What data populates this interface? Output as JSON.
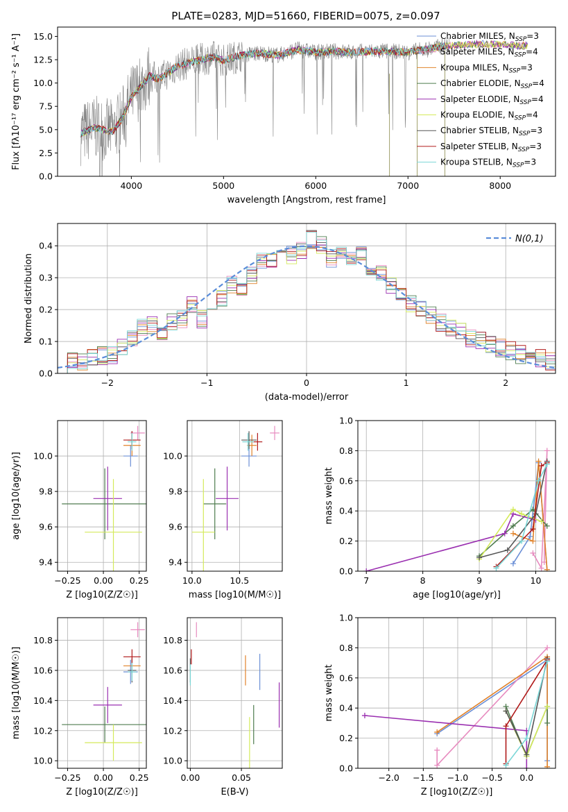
{
  "figure": {
    "title": "PLATE=0283, MJD=51660, FIBERID=0075, z=0.097"
  },
  "colors": {
    "Chabrier MILES": "#6b8fd6",
    "Salpeter MILES": "#e78bbf",
    "Kroupa MILES": "#e0822a",
    "Chabrier ELODIE": "#4d7b4d",
    "Salpeter ELODIE": "#9a2fb0",
    "Kroupa ELODIE": "#d4ea5a",
    "Chabrier STELIB": "#555555",
    "Salpeter STELIB": "#b01a1a",
    "Kroupa STELIB": "#7ad6d6",
    "normal_curve": "#5b8dd9",
    "data_spectrum": "#808080"
  },
  "chart_data": [
    {
      "id": "spectrum",
      "type": "line",
      "xlabel": "wavelength [Angstrom, rest frame]",
      "ylabel": "Flux [fλ10⁻¹⁷ erg cm⁻² s⁻¹ A⁻¹]",
      "xlim": [
        3200,
        8600
      ],
      "ylim": [
        0,
        16
      ],
      "xticks": [
        4000,
        5000,
        6000,
        7000,
        8000
      ],
      "yticks": [
        0.0,
        2.5,
        5.0,
        7.5,
        10.0,
        12.5,
        15.0
      ],
      "grid": false,
      "legend_position": "top-right",
      "legend": [
        "Chabrier MILES, N_SSP=3",
        "Salpeter MILES, N_SSP=4",
        "Kroupa MILES, N_SSP=3",
        "Chabrier ELODIE, N_SSP=4",
        "Salpeter ELODIE, N_SSP=4",
        "Kroupa ELODIE, N_SSP=4",
        "Chabrier STELIB, N_SSP=3",
        "Salpeter STELIB, N_SSP=3",
        "Kroupa STELIB, N_SSP=3"
      ],
      "continuum_x": [
        3450,
        3600,
        3800,
        3900,
        4000,
        4100,
        4200,
        4300,
        4500,
        4700,
        4900,
        5000,
        5200,
        5400,
        5600,
        5800,
        6000,
        6200,
        6400,
        6600,
        6800,
        7000,
        7200,
        7400,
        7800,
        8200
      ],
      "continuum_y": [
        4.6,
        5.2,
        4.8,
        6.2,
        8.5,
        9.6,
        10.8,
        10.4,
        11.8,
        12.4,
        12.8,
        12.4,
        13.0,
        13.2,
        13.0,
        13.6,
        13.3,
        13.4,
        13.3,
        13.4,
        13.4,
        13.3,
        13.6,
        14.0,
        14.2,
        14.0
      ]
    },
    {
      "id": "residuals",
      "type": "histogram",
      "xlabel": "(data-model)/error",
      "ylabel": "Normed distribution",
      "xlim": [
        -2.5,
        2.5
      ],
      "ylim": [
        0,
        0.47
      ],
      "xticks": [
        -2,
        -1,
        0,
        1,
        2
      ],
      "yticks": [
        0.0,
        0.1,
        0.2,
        0.3,
        0.4
      ],
      "grid": true,
      "legend_position": "top-right",
      "normal_label": "N(0,1)",
      "bin_centers": [
        -2.45,
        -2.35,
        -2.25,
        -2.15,
        -2.05,
        -1.95,
        -1.85,
        -1.75,
        -1.65,
        -1.55,
        -1.45,
        -1.35,
        -1.25,
        -1.15,
        -1.05,
        -0.95,
        -0.85,
        -0.75,
        -0.65,
        -0.55,
        -0.45,
        -0.35,
        -0.25,
        -0.15,
        -0.05,
        0.05,
        0.15,
        0.25,
        0.35,
        0.45,
        0.55,
        0.65,
        0.75,
        0.85,
        0.95,
        1.05,
        1.15,
        1.25,
        1.35,
        1.45,
        1.55,
        1.65,
        1.75,
        1.85,
        1.95,
        2.05,
        2.15,
        2.25,
        2.35,
        2.45
      ],
      "heights": [
        0.03,
        0.035,
        0.04,
        0.05,
        0.055,
        0.06,
        0.08,
        0.11,
        0.14,
        0.15,
        0.12,
        0.16,
        0.17,
        0.22,
        0.17,
        0.2,
        0.24,
        0.28,
        0.26,
        0.31,
        0.35,
        0.36,
        0.38,
        0.37,
        0.39,
        0.42,
        0.4,
        0.36,
        0.39,
        0.36,
        0.37,
        0.3,
        0.31,
        0.28,
        0.24,
        0.22,
        0.2,
        0.18,
        0.16,
        0.14,
        0.13,
        0.11,
        0.1,
        0.09,
        0.08,
        0.07,
        0.06,
        0.055,
        0.045,
        0.04
      ]
    },
    {
      "id": "age-vs-Z",
      "type": "errorbar",
      "xlabel": "Z [log10(Z/Z☉)]",
      "ylabel": "age  [log10(age/yr)]",
      "xlim": [
        -0.32,
        0.3
      ],
      "ylim": [
        9.35,
        10.2
      ],
      "xticks": [
        -0.25,
        0.0,
        0.25
      ],
      "yticks": [
        9.4,
        9.6,
        9.8,
        10.0
      ],
      "grid": true,
      "points": [
        {
          "model": "Chabrier MILES",
          "x": 0.19,
          "xerr": 0.05,
          "y": 10.0,
          "yerr": 0.06
        },
        {
          "model": "Salpeter MILES",
          "x": 0.24,
          "xerr": 0.05,
          "y": 10.13,
          "yerr": 0.04
        },
        {
          "model": "Kroupa MILES",
          "x": 0.2,
          "xerr": 0.06,
          "y": 10.06,
          "yerr": 0.06
        },
        {
          "model": "Chabrier ELODIE",
          "x": 0.01,
          "xerr": 0.3,
          "y": 9.73,
          "yerr": 0.2
        },
        {
          "model": "Salpeter ELODIE",
          "x": 0.03,
          "xerr": 0.1,
          "y": 9.76,
          "yerr": 0.18
        },
        {
          "model": "Kroupa ELODIE",
          "x": 0.07,
          "xerr": 0.2,
          "y": 9.57,
          "yerr": 0.3
        },
        {
          "model": "Chabrier STELIB",
          "x": 0.2,
          "xerr": 0.03,
          "y": 10.09,
          "yerr": 0.05
        },
        {
          "model": "Salpeter STELIB",
          "x": 0.2,
          "xerr": 0.06,
          "y": 10.09,
          "yerr": 0.05
        },
        {
          "model": "Kroupa STELIB",
          "x": 0.2,
          "xerr": 0.03,
          "y": 10.08,
          "yerr": 0.05
        }
      ]
    },
    {
      "id": "age-vs-mass",
      "type": "errorbar",
      "xlabel": "mass [log10(M/M☉)]",
      "ylabel": "",
      "xlim": [
        9.95,
        10.95
      ],
      "ylim": [
        9.35,
        10.2
      ],
      "xticks": [
        10.0,
        10.5
      ],
      "yticks": [
        9.4,
        9.6,
        9.8,
        10.0
      ],
      "grid": true,
      "points": [
        {
          "model": "Chabrier MILES",
          "x": 10.6,
          "xerr": 0.08,
          "y": 10.0,
          "yerr": 0.06
        },
        {
          "model": "Salpeter MILES",
          "x": 10.87,
          "xerr": 0.05,
          "y": 10.13,
          "yerr": 0.04
        },
        {
          "model": "Kroupa MILES",
          "x": 10.63,
          "xerr": 0.05,
          "y": 10.06,
          "yerr": 0.06
        },
        {
          "model": "Chabrier ELODIE",
          "x": 10.24,
          "xerr": 0.12,
          "y": 9.73,
          "yerr": 0.2
        },
        {
          "model": "Salpeter ELODIE",
          "x": 10.37,
          "xerr": 0.12,
          "y": 9.76,
          "yerr": 0.18
        },
        {
          "model": "Kroupa ELODIE",
          "x": 10.12,
          "xerr": 0.12,
          "y": 9.57,
          "yerr": 0.3
        },
        {
          "model": "Chabrier STELIB",
          "x": 10.6,
          "xerr": 0.08,
          "y": 10.09,
          "yerr": 0.05
        },
        {
          "model": "Salpeter STELIB",
          "x": 10.69,
          "xerr": 0.05,
          "y": 10.08,
          "yerr": 0.05
        },
        {
          "model": "Kroupa STELIB",
          "x": 10.59,
          "xerr": 0.06,
          "y": 10.08,
          "yerr": 0.05
        }
      ]
    },
    {
      "id": "weight-vs-age",
      "type": "line",
      "xlabel": "age  [log10(age/yr)]",
      "ylabel": "mass weight",
      "xlim": [
        6.85,
        10.35
      ],
      "ylim": [
        0,
        1.0
      ],
      "xticks": [
        7,
        8,
        9,
        10
      ],
      "yticks": [
        0.0,
        0.2,
        0.4,
        0.6,
        0.8,
        1.0
      ],
      "grid": true,
      "series": [
        {
          "model": "Chabrier MILES",
          "x": [
            9.6,
            9.9,
            10.05,
            10.2
          ],
          "y": [
            0.05,
            0.23,
            0.72,
            0.01
          ]
        },
        {
          "model": "Salpeter MILES",
          "x": [
            9.95,
            10.1,
            10.2,
            10.15
          ],
          "y": [
            0.12,
            0.02,
            0.8,
            0.06
          ]
        },
        {
          "model": "Kroupa MILES",
          "x": [
            9.6,
            9.95,
            10.05,
            10.2
          ],
          "y": [
            0.25,
            0.2,
            0.73,
            0.01
          ]
        },
        {
          "model": "Chabrier ELODIE",
          "x": [
            9.0,
            9.6,
            9.95,
            10.2
          ],
          "y": [
            0.1,
            0.3,
            0.41,
            0.3
          ]
        },
        {
          "model": "Salpeter ELODIE",
          "x": [
            7.0,
            9.45,
            9.6,
            10.0
          ],
          "y": [
            0.0,
            0.25,
            0.38,
            0.34
          ]
        },
        {
          "model": "Kroupa ELODIE",
          "x": [
            9.0,
            9.6,
            9.75,
            10.1
          ],
          "y": [
            0.08,
            0.41,
            0.38,
            0.33
          ]
        },
        {
          "model": "Chabrier STELIB",
          "x": [
            9.0,
            9.5,
            10.0,
            10.2
          ],
          "y": [
            0.09,
            0.14,
            0.38,
            0.73
          ]
        },
        {
          "model": "Salpeter STELIB",
          "x": [
            9.3,
            9.95,
            10.1,
            10.2
          ],
          "y": [
            0.03,
            0.28,
            0.7,
            0.72
          ]
        },
        {
          "model": "Kroupa STELIB",
          "x": [
            9.3,
            9.75,
            10.05,
            10.2
          ],
          "y": [
            0.02,
            0.2,
            0.6,
            0.71
          ]
        }
      ]
    },
    {
      "id": "mass-vs-Z",
      "type": "errorbar",
      "xlabel": "Z [log10(Z/Z☉)]",
      "ylabel": "mass [log10(M/M☉)]",
      "xlim": [
        -0.32,
        0.3
      ],
      "ylim": [
        9.95,
        10.95
      ],
      "xticks": [
        -0.25,
        0.0,
        0.25
      ],
      "yticks": [
        10.0,
        10.2,
        10.4,
        10.6,
        10.8
      ],
      "grid": true,
      "points": [
        {
          "model": "Chabrier MILES",
          "x": 0.19,
          "xerr": 0.05,
          "y": 10.59,
          "yerr": 0.08
        },
        {
          "model": "Salpeter MILES",
          "x": 0.24,
          "xerr": 0.05,
          "y": 10.87,
          "yerr": 0.05
        },
        {
          "model": "Kroupa MILES",
          "x": 0.2,
          "xerr": 0.06,
          "y": 10.63,
          "yerr": 0.05
        },
        {
          "model": "Chabrier ELODIE",
          "x": 0.01,
          "xerr": 0.3,
          "y": 10.24,
          "yerr": 0.12
        },
        {
          "model": "Salpeter ELODIE",
          "x": 0.03,
          "xerr": 0.1,
          "y": 10.37,
          "yerr": 0.12
        },
        {
          "model": "Kroupa ELODIE",
          "x": 0.07,
          "xerr": 0.2,
          "y": 10.12,
          "yerr": 0.12
        },
        {
          "model": "Chabrier STELIB",
          "x": 0.2,
          "xerr": 0.03,
          "y": 10.6,
          "yerr": 0.08
        },
        {
          "model": "Salpeter STELIB",
          "x": 0.2,
          "xerr": 0.06,
          "y": 10.69,
          "yerr": 0.05
        },
        {
          "model": "Kroupa STELIB",
          "x": 0.2,
          "xerr": 0.03,
          "y": 10.59,
          "yerr": 0.06
        }
      ]
    },
    {
      "id": "mass-vs-ebv",
      "type": "errorbar",
      "xlabel": "E(B-V)",
      "ylabel": "",
      "xlim": [
        -0.003,
        0.09
      ],
      "ylim": [
        9.95,
        10.95
      ],
      "xticks": [
        0.0,
        0.05
      ],
      "yticks": [
        10.0,
        10.2,
        10.4,
        10.6,
        10.8
      ],
      "grid": true,
      "points": [
        {
          "model": "Chabrier MILES",
          "x": 0.068,
          "xerr": 0,
          "y": 10.59,
          "yerr": 0.12
        },
        {
          "model": "Salpeter MILES",
          "x": 0.006,
          "xerr": 0,
          "y": 10.87,
          "yerr": 0.05
        },
        {
          "model": "Kroupa MILES",
          "x": 0.054,
          "xerr": 0,
          "y": 10.6,
          "yerr": 0.1
        },
        {
          "model": "Chabrier ELODIE",
          "x": 0.062,
          "xerr": 0,
          "y": 10.24,
          "yerr": 0.13
        },
        {
          "model": "Salpeter ELODIE",
          "x": 0.087,
          "xerr": 0,
          "y": 10.37,
          "yerr": 0.15
        },
        {
          "model": "Kroupa ELODIE",
          "x": 0.058,
          "xerr": 0,
          "y": 10.12,
          "yerr": 0.17
        },
        {
          "model": "Chabrier STELIB",
          "x": 0.0,
          "xerr": 0,
          "y": 10.6,
          "yerr": 0.08
        },
        {
          "model": "Salpeter STELIB",
          "x": 0.001,
          "xerr": 0,
          "y": 10.69,
          "yerr": 0.05
        },
        {
          "model": "Kroupa STELIB",
          "x": 0.0,
          "xerr": 0,
          "y": 10.57,
          "yerr": 0.07
        }
      ]
    },
    {
      "id": "weight-vs-Z",
      "type": "line",
      "xlabel": "Z [log10(Z/Z☉)]",
      "ylabel": "mass weight",
      "xlim": [
        -2.45,
        0.42
      ],
      "ylim": [
        0,
        1.0
      ],
      "xticks": [
        -2.0,
        -1.5,
        -1.0,
        -0.5,
        0.0
      ],
      "yticks": [
        0.0,
        0.2,
        0.4,
        0.6,
        0.8,
        1.0
      ],
      "grid": true,
      "series": [
        {
          "model": "Chabrier MILES",
          "x": [
            -1.3,
            0.3,
            0.3
          ],
          "y": [
            0.23,
            0.72,
            0.05
          ]
        },
        {
          "model": "Salpeter MILES",
          "x": [
            -1.3,
            -1.3,
            0.3
          ],
          "y": [
            0.12,
            0.02,
            0.8
          ]
        },
        {
          "model": "Kroupa MILES",
          "x": [
            -1.3,
            0.3,
            0.3
          ],
          "y": [
            0.24,
            0.74,
            0.01
          ]
        },
        {
          "model": "Chabrier ELODIE",
          "x": [
            -0.3,
            0.0,
            0.3,
            0.3
          ],
          "y": [
            0.41,
            0.08,
            0.41,
            0.3
          ]
        },
        {
          "model": "Salpeter ELODIE",
          "x": [
            -2.35,
            0.0,
            0.0
          ],
          "y": [
            0.35,
            0.25,
            0.0
          ]
        },
        {
          "model": "Kroupa ELODIE",
          "x": [
            -0.3,
            0.0,
            0.3
          ],
          "y": [
            0.38,
            0.08,
            0.41
          ]
        },
        {
          "model": "Chabrier STELIB",
          "x": [
            -0.3,
            0.0,
            0.3
          ],
          "y": [
            0.38,
            0.09,
            0.73
          ]
        },
        {
          "model": "Salpeter STELIB",
          "x": [
            -0.3,
            -0.3,
            0.3
          ],
          "y": [
            0.03,
            0.28,
            0.72
          ]
        },
        {
          "model": "Kroupa STELIB",
          "x": [
            -0.3,
            0.0,
            0.3
          ],
          "y": [
            0.02,
            0.2,
            0.71
          ]
        }
      ]
    }
  ]
}
